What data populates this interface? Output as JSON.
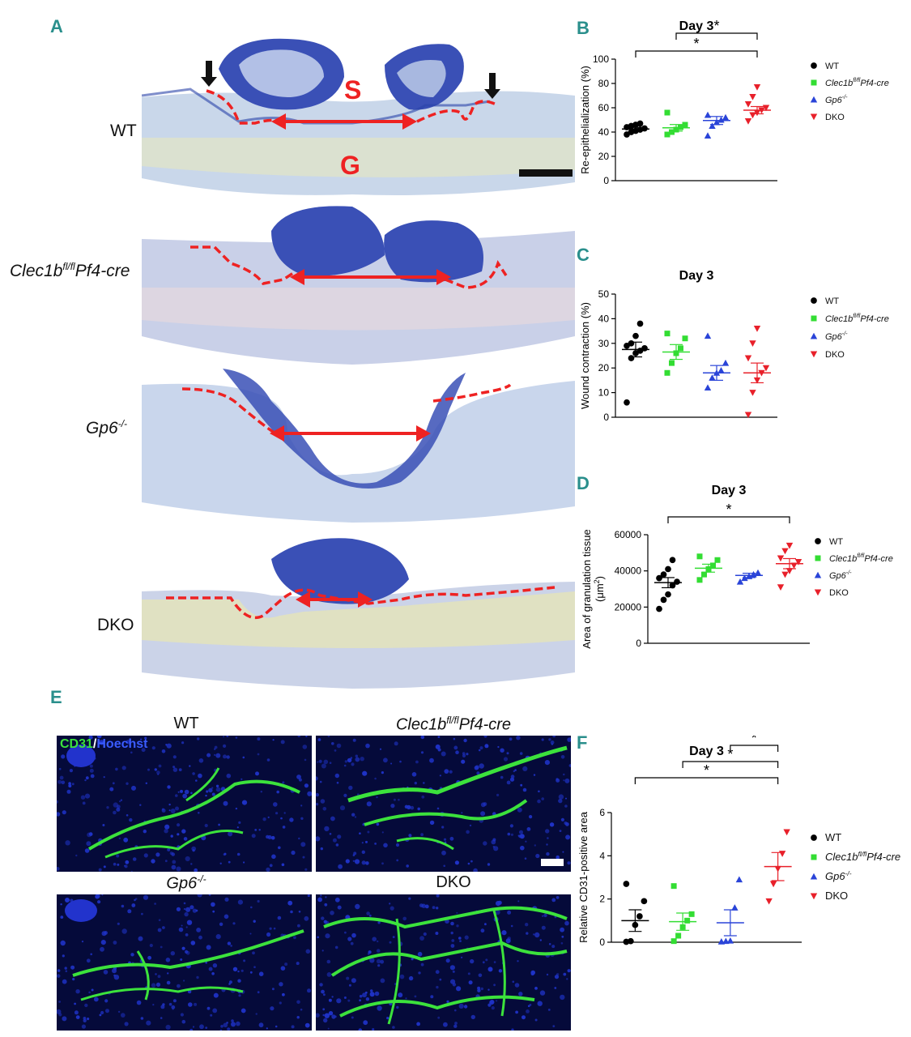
{
  "panels": {
    "A": "A",
    "B": "B",
    "C": "C",
    "D": "D",
    "E": "E",
    "F": "F"
  },
  "histology": {
    "rows": [
      {
        "label_main": "WT",
        "label_sup": "",
        "label_tail": ""
      },
      {
        "label_main": "Clec1b",
        "label_sup": "fl/fl",
        "label_tail": "Pf4-cre"
      },
      {
        "label_main": "Gp6",
        "label_sup": "-/-",
        "label_tail": ""
      },
      {
        "label_main": "DKO",
        "label_sup": "",
        "label_tail": ""
      }
    ],
    "marker_S": "S",
    "marker_G": "G"
  },
  "fluorescence": {
    "stain_green": "CD31",
    "stain_sep": "/",
    "stain_blue": "Hoechst",
    "tiles": [
      {
        "main": "WT",
        "sup": "",
        "tail": ""
      },
      {
        "main": "Clec1b",
        "sup": "fl/fl",
        "tail": "Pf4-cre"
      },
      {
        "main": "Gp6",
        "sup": "-/-",
        "tail": ""
      },
      {
        "main": "DKO",
        "sup": "",
        "tail": ""
      }
    ]
  },
  "legend": {
    "items": [
      {
        "main": "WT",
        "sup": "",
        "tail": "",
        "color": "#000000",
        "marker": "circle"
      },
      {
        "main": "Clec1b",
        "sup": "fl/fl",
        "tail": "Pf4-cre",
        "color": "#33dd33",
        "marker": "square"
      },
      {
        "main": "Gp6",
        "sup": "-/-",
        "tail": "",
        "color": "#2a44d8",
        "marker": "triangle"
      },
      {
        "main": "DKO",
        "sup": "",
        "tail": "",
        "color": "#e8202a",
        "marker": "triangle-down"
      }
    ]
  },
  "chart_data": [
    {
      "id": "B",
      "type": "scatter",
      "title": "Day 3",
      "ylabel": "Re-epithelialization (%)",
      "ylim": [
        0,
        100
      ],
      "yticks": [
        0,
        20,
        40,
        60,
        80,
        100
      ],
      "groups": [
        "WT",
        "Clec1bfl/flPf4-cre",
        "Gp6-/-",
        "DKO"
      ],
      "points": [
        [
          38,
          40,
          41,
          42,
          43,
          44,
          45,
          46,
          47
        ],
        [
          38,
          40,
          42,
          44,
          46,
          56
        ],
        [
          37,
          45,
          48,
          50,
          52,
          54
        ],
        [
          49,
          54,
          56,
          58,
          60,
          63,
          69,
          77
        ]
      ],
      "mean": [
        42.5,
        43.5,
        49.5,
        58
      ],
      "sem": [
        1.3,
        2.7,
        3.3,
        3.0
      ],
      "significance": [
        {
          "from": 0,
          "to": 3,
          "label": "*"
        },
        {
          "from": 1,
          "to": 3,
          "label": "*"
        }
      ]
    },
    {
      "id": "C",
      "type": "scatter",
      "title": "Day 3",
      "ylabel": "Wound contraction (%)",
      "ylim": [
        0,
        50
      ],
      "yticks": [
        0,
        10,
        20,
        30,
        40,
        50
      ],
      "groups": [
        "WT",
        "Clec1bfl/flPf4-cre",
        "Gp6-/-",
        "DKO"
      ],
      "points": [
        [
          6,
          24,
          26,
          27,
          28,
          29,
          30,
          33,
          38
        ],
        [
          18,
          22,
          26,
          28,
          32,
          34
        ],
        [
          12,
          16,
          18,
          19,
          22,
          33
        ],
        [
          1,
          10,
          15,
          18,
          20,
          24,
          30,
          36
        ]
      ],
      "mean": [
        27.5,
        26.5,
        18,
        18
      ],
      "sem": [
        3.0,
        3.0,
        3.0,
        4.0
      ],
      "significance": []
    },
    {
      "id": "D",
      "type": "scatter",
      "title": "Day 3",
      "ylabel": "Area of granulation tissue",
      "yunit": "(μm",
      "yunit_sup": "2",
      "yunit_tail": ")",
      "ylim": [
        0,
        60000
      ],
      "yticks": [
        0,
        20000,
        40000,
        60000
      ],
      "groups": [
        "WT",
        "Clec1bfl/flPf4-cre",
        "Gp6-/-",
        "DKO"
      ],
      "points": [
        [
          19000,
          24000,
          27000,
          32000,
          34000,
          36000,
          38000,
          41000,
          46000
        ],
        [
          35000,
          38000,
          41000,
          43000,
          46000,
          48000
        ],
        [
          34000,
          36000,
          37000,
          38000,
          39000
        ],
        [
          31000,
          38000,
          40000,
          43000,
          45000,
          47000,
          51000,
          54000
        ]
      ],
      "mean": [
        33500,
        41500,
        37500,
        44000
      ],
      "sem": [
        2800,
        2200,
        1200,
        2800
      ],
      "significance": [
        {
          "from": 0,
          "to": 3,
          "label": "*"
        }
      ]
    },
    {
      "id": "F",
      "type": "scatter",
      "title": "Day 3",
      "ylabel": "Relative CD31-positive area",
      "ylim": [
        0,
        6
      ],
      "yticks": [
        0,
        2,
        4,
        6
      ],
      "groups": [
        "WT",
        "Clec1bfl/flPf4-cre",
        "Gp6-/-",
        "DKO"
      ],
      "points": [
        [
          0.02,
          0.05,
          0.8,
          1.2,
          1.9,
          2.7
        ],
        [
          0.05,
          0.3,
          0.7,
          1.0,
          1.3,
          2.6
        ],
        [
          0.03,
          0.05,
          0.07,
          1.6,
          2.9
        ],
        [
          1.9,
          2.7,
          3.4,
          4.1,
          5.1
        ]
      ],
      "mean": [
        1.0,
        0.95,
        0.9,
        3.5
      ],
      "sem": [
        0.5,
        0.4,
        0.6,
        0.65
      ],
      "significance": [
        {
          "from": 0,
          "to": 3,
          "label": "*"
        },
        {
          "from": 1,
          "to": 3,
          "label": "*"
        },
        {
          "from": 2,
          "to": 3,
          "label": "*"
        }
      ]
    }
  ]
}
